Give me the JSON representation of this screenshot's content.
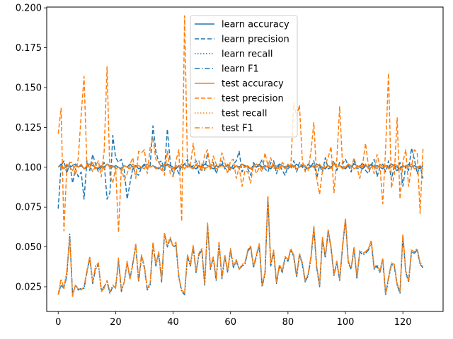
{
  "chart_data": {
    "type": "line",
    "title": "",
    "xlabel": "",
    "ylabel": "",
    "xlim": [
      -4,
      134
    ],
    "ylim": [
      0.0095,
      0.2005
    ],
    "xticks": [
      0,
      20,
      40,
      60,
      80,
      100,
      120
    ],
    "yticks": [
      0.025,
      0.05,
      0.075,
      0.1,
      0.125,
      0.15,
      0.175,
      0.2
    ],
    "ytick_labels": [
      "0.025",
      "0.050",
      "0.075",
      "0.100",
      "0.125",
      "0.150",
      "0.175",
      "0.200"
    ],
    "grid": false,
    "legend_position": "top-center",
    "x_start": 0,
    "series": [
      {
        "name": "learn accuracy",
        "color": "#1f77b4",
        "dash": "solid",
        "values": [
          0.1,
          0.102,
          0.099,
          0.101,
          0.1,
          0.101,
          0.102,
          0.1,
          0.101,
          0.099,
          0.1,
          0.102,
          0.101,
          0.1,
          0.099,
          0.101,
          0.1,
          0.102,
          0.101,
          0.1,
          0.101,
          0.1,
          0.099,
          0.101,
          0.1,
          0.102,
          0.1,
          0.101,
          0.099,
          0.1,
          0.101,
          0.102,
          0.1,
          0.101,
          0.1,
          0.099,
          0.101,
          0.1,
          0.102,
          0.101,
          0.1,
          0.099,
          0.101,
          0.1,
          0.102,
          0.1,
          0.101,
          0.1,
          0.099,
          0.101,
          0.1,
          0.102,
          0.101,
          0.1,
          0.099,
          0.101,
          0.1,
          0.102,
          0.1,
          0.101,
          0.1,
          0.099,
          0.101,
          0.1,
          0.102,
          0.101,
          0.1,
          0.099,
          0.101,
          0.1,
          0.102,
          0.1,
          0.101,
          0.1,
          0.099,
          0.101,
          0.1,
          0.102,
          0.101,
          0.1,
          0.099,
          0.101,
          0.1,
          0.102,
          0.1,
          0.101,
          0.1,
          0.099,
          0.101,
          0.1,
          0.102,
          0.101,
          0.1,
          0.099,
          0.101,
          0.1,
          0.102,
          0.1,
          0.101,
          0.1,
          0.099,
          0.101,
          0.1,
          0.102,
          0.101,
          0.1,
          0.099,
          0.101,
          0.1,
          0.102,
          0.1,
          0.101,
          0.1,
          0.099,
          0.101,
          0.1,
          0.102,
          0.101,
          0.1,
          0.099,
          0.101,
          0.1,
          0.102,
          0.1,
          0.101,
          0.1,
          0.099,
          0.101
        ]
      },
      {
        "name": "learn precision",
        "color": "#1f77b4",
        "dash": "dashed",
        "values": [
          0.074,
          0.101,
          0.104,
          0.096,
          0.103,
          0.09,
          0.099,
          0.094,
          0.097,
          0.08,
          0.104,
          0.098,
          0.108,
          0.102,
          0.097,
          0.1,
          0.103,
          0.08,
          0.084,
          0.12,
          0.106,
          0.103,
          0.105,
          0.098,
          0.08,
          0.09,
          0.1,
          0.096,
          0.095,
          0.1,
          0.102,
          0.099,
          0.101,
          0.126,
          0.11,
          0.103,
          0.104,
          0.098,
          0.124,
          0.103,
          0.095,
          0.1,
          0.096,
          0.101,
          0.102,
          0.105,
          0.099,
          0.101,
          0.104,
          0.096,
          0.102,
          0.098,
          0.109,
          0.1,
          0.103,
          0.096,
          0.101,
          0.104,
          0.099,
          0.1,
          0.098,
          0.102,
          0.104,
          0.11,
          0.097,
          0.101,
          0.099,
          0.095,
          0.103,
          0.1,
          0.101,
          0.105,
          0.099,
          0.097,
          0.103,
          0.104,
          0.096,
          0.102,
          0.098,
          0.095,
          0.101,
          0.099,
          0.104,
          0.097,
          0.103,
          0.1,
          0.098,
          0.102,
          0.1,
          0.104,
          0.093,
          0.101,
          0.097,
          0.106,
          0.099,
          0.1,
          0.104,
          0.098,
          0.103,
          0.102,
          0.105,
          0.101,
          0.097,
          0.104,
          0.099,
          0.1,
          0.103,
          0.098,
          0.096,
          0.101,
          0.105,
          0.094,
          0.1,
          0.102,
          0.097,
          0.104,
          0.092,
          0.101,
          0.097,
          0.103,
          0.088,
          0.101,
          0.098,
          0.112,
          0.105,
          0.096,
          0.101,
          0.093
        ]
      },
      {
        "name": "learn recall",
        "color": "#1f77b4",
        "dash": "dotted",
        "values": [
          0.02,
          0.026,
          0.024,
          0.032,
          0.058,
          0.02,
          0.026,
          0.023,
          0.024,
          0.024,
          0.034,
          0.043,
          0.027,
          0.036,
          0.039,
          0.023,
          0.025,
          0.028,
          0.021,
          0.025,
          0.025,
          0.041,
          0.022,
          0.028,
          0.04,
          0.03,
          0.04,
          0.051,
          0.028,
          0.044,
          0.037,
          0.023,
          0.026,
          0.052,
          0.038,
          0.046,
          0.028,
          0.058,
          0.05,
          0.055,
          0.05,
          0.051,
          0.031,
          0.022,
          0.02,
          0.044,
          0.038,
          0.05,
          0.034,
          0.045,
          0.048,
          0.026,
          0.064,
          0.036,
          0.043,
          0.029,
          0.052,
          0.03,
          0.044,
          0.034,
          0.048,
          0.037,
          0.041,
          0.036,
          0.038,
          0.039,
          0.047,
          0.05,
          0.037,
          0.044,
          0.051,
          0.025,
          0.033,
          0.081,
          0.038,
          0.047,
          0.027,
          0.038,
          0.034,
          0.043,
          0.041,
          0.048,
          0.044,
          0.031,
          0.045,
          0.039,
          0.028,
          0.032,
          0.043,
          0.062,
          0.037,
          0.025,
          0.055,
          0.043,
          0.06,
          0.049,
          0.032,
          0.04,
          0.029,
          0.05,
          0.067,
          0.04,
          0.036,
          0.049,
          0.03,
          0.047,
          0.045,
          0.046,
          0.048,
          0.053,
          0.036,
          0.038,
          0.034,
          0.042,
          0.02,
          0.03,
          0.039,
          0.038,
          0.026,
          0.021,
          0.057,
          0.034,
          0.028,
          0.047,
          0.046,
          0.048,
          0.039,
          0.037
        ]
      },
      {
        "name": "learn F1",
        "color": "#1f77b4",
        "dash": "dashdot",
        "values": [
          0.02,
          0.026,
          0.024,
          0.032,
          0.058,
          0.02,
          0.026,
          0.023,
          0.024,
          0.024,
          0.034,
          0.043,
          0.027,
          0.036,
          0.039,
          0.023,
          0.025,
          0.028,
          0.021,
          0.025,
          0.025,
          0.041,
          0.022,
          0.028,
          0.04,
          0.03,
          0.04,
          0.051,
          0.028,
          0.044,
          0.037,
          0.023,
          0.026,
          0.052,
          0.038,
          0.046,
          0.028,
          0.058,
          0.05,
          0.055,
          0.05,
          0.051,
          0.031,
          0.022,
          0.02,
          0.044,
          0.038,
          0.05,
          0.034,
          0.045,
          0.048,
          0.026,
          0.064,
          0.036,
          0.043,
          0.029,
          0.052,
          0.03,
          0.044,
          0.034,
          0.048,
          0.037,
          0.041,
          0.036,
          0.038,
          0.039,
          0.047,
          0.05,
          0.037,
          0.044,
          0.051,
          0.025,
          0.033,
          0.081,
          0.038,
          0.047,
          0.027,
          0.038,
          0.034,
          0.043,
          0.041,
          0.048,
          0.044,
          0.031,
          0.045,
          0.039,
          0.028,
          0.032,
          0.043,
          0.062,
          0.037,
          0.025,
          0.055,
          0.043,
          0.06,
          0.049,
          0.032,
          0.04,
          0.029,
          0.05,
          0.067,
          0.04,
          0.036,
          0.049,
          0.03,
          0.047,
          0.045,
          0.046,
          0.048,
          0.053,
          0.036,
          0.038,
          0.034,
          0.042,
          0.02,
          0.03,
          0.039,
          0.038,
          0.026,
          0.021,
          0.057,
          0.034,
          0.028,
          0.047,
          0.046,
          0.048,
          0.039,
          0.037
        ]
      },
      {
        "name": "test accuracy",
        "color": "#ff7f0e",
        "dash": "solid",
        "values": [
          0.1,
          0.101,
          0.099,
          0.102,
          0.1,
          0.098,
          0.101,
          0.1,
          0.102,
          0.099,
          0.101,
          0.1,
          0.103,
          0.099,
          0.1,
          0.101,
          0.099,
          0.102,
          0.1,
          0.101,
          0.099,
          0.1,
          0.098,
          0.101,
          0.1,
          0.099,
          0.102,
          0.1,
          0.101,
          0.1,
          0.099,
          0.102,
          0.1,
          0.101,
          0.099,
          0.1,
          0.098,
          0.102,
          0.101,
          0.1,
          0.099,
          0.101,
          0.1,
          0.102,
          0.099,
          0.101,
          0.1,
          0.099,
          0.102,
          0.1,
          0.101,
          0.099,
          0.1,
          0.102,
          0.101,
          0.099,
          0.1,
          0.101,
          0.1,
          0.102,
          0.099,
          0.1,
          0.101,
          0.099,
          0.102,
          0.1,
          0.101,
          0.099,
          0.1,
          0.102,
          0.101,
          0.099,
          0.1,
          0.101,
          0.1,
          0.102,
          0.099,
          0.1,
          0.101,
          0.099,
          0.102,
          0.1,
          0.101,
          0.099,
          0.1,
          0.102,
          0.101,
          0.099,
          0.1,
          0.101,
          0.1,
          0.102,
          0.099,
          0.1,
          0.101,
          0.099,
          0.102,
          0.1,
          0.101,
          0.099,
          0.1,
          0.102,
          0.101,
          0.099,
          0.1,
          0.101,
          0.1,
          0.102,
          0.099,
          0.1,
          0.101,
          0.099,
          0.102,
          0.1,
          0.101,
          0.099,
          0.1,
          0.102,
          0.101,
          0.099,
          0.1,
          0.101,
          0.1,
          0.102,
          0.099,
          0.1,
          0.101,
          0.099
        ]
      },
      {
        "name": "test precision",
        "color": "#ff7f0e",
        "dash": "dashed",
        "values": [
          0.121,
          0.137,
          0.06,
          0.1,
          0.103,
          0.103,
          0.095,
          0.106,
          0.133,
          0.157,
          0.1,
          0.102,
          0.097,
          0.101,
          0.104,
          0.094,
          0.11,
          0.163,
          0.095,
          0.09,
          0.1,
          0.059,
          0.1,
          0.092,
          0.096,
          0.102,
          0.106,
          0.093,
          0.11,
          0.109,
          0.111,
          0.096,
          0.112,
          0.118,
          0.105,
          0.103,
          0.1,
          0.095,
          0.11,
          0.096,
          0.094,
          0.104,
          0.111,
          0.066,
          0.195,
          0.102,
          0.101,
          0.115,
          0.101,
          0.104,
          0.097,
          0.108,
          0.111,
          0.098,
          0.107,
          0.102,
          0.1,
          0.109,
          0.103,
          0.096,
          0.104,
          0.105,
          0.093,
          0.1,
          0.088,
          0.098,
          0.097,
          0.09,
          0.102,
          0.096,
          0.1,
          0.097,
          0.109,
          0.101,
          0.106,
          0.099,
          0.102,
          0.098,
          0.103,
          0.101,
          0.099,
          0.101,
          0.14,
          0.132,
          0.139,
          0.104,
          0.097,
          0.098,
          0.11,
          0.128,
          0.093,
          0.083,
          0.098,
          0.102,
          0.106,
          0.113,
          0.084,
          0.105,
          0.138,
          0.101,
          0.1,
          0.102,
          0.099,
          0.106,
          0.1,
          0.093,
          0.102,
          0.115,
          0.101,
          0.102,
          0.096,
          0.108,
          0.101,
          0.077,
          0.112,
          0.159,
          0.087,
          0.095,
          0.131,
          0.08,
          0.103,
          0.111,
          0.088,
          0.1,
          0.111,
          0.109,
          0.071,
          0.112
        ]
      },
      {
        "name": "test recall",
        "color": "#ff7f0e",
        "dash": "dotted",
        "values": [
          0.02,
          0.03,
          0.024,
          0.035,
          0.056,
          0.019,
          0.026,
          0.024,
          0.023,
          0.025,
          0.035,
          0.044,
          0.028,
          0.038,
          0.04,
          0.022,
          0.024,
          0.029,
          0.022,
          0.026,
          0.024,
          0.043,
          0.023,
          0.028,
          0.041,
          0.03,
          0.039,
          0.052,
          0.029,
          0.045,
          0.038,
          0.024,
          0.027,
          0.053,
          0.039,
          0.047,
          0.029,
          0.059,
          0.051,
          0.056,
          0.05,
          0.053,
          0.031,
          0.023,
          0.021,
          0.045,
          0.039,
          0.051,
          0.035,
          0.046,
          0.049,
          0.027,
          0.065,
          0.037,
          0.044,
          0.03,
          0.053,
          0.031,
          0.045,
          0.035,
          0.049,
          0.038,
          0.042,
          0.036,
          0.039,
          0.04,
          0.048,
          0.051,
          0.038,
          0.045,
          0.052,
          0.026,
          0.034,
          0.082,
          0.039,
          0.048,
          0.028,
          0.039,
          0.035,
          0.044,
          0.042,
          0.049,
          0.045,
          0.032,
          0.046,
          0.04,
          0.029,
          0.033,
          0.044,
          0.063,
          0.038,
          0.026,
          0.056,
          0.044,
          0.061,
          0.05,
          0.033,
          0.041,
          0.03,
          0.051,
          0.068,
          0.041,
          0.037,
          0.05,
          0.031,
          0.048,
          0.046,
          0.047,
          0.049,
          0.054,
          0.037,
          0.039,
          0.035,
          0.043,
          0.021,
          0.031,
          0.04,
          0.039,
          0.027,
          0.022,
          0.058,
          0.035,
          0.029,
          0.048,
          0.047,
          0.049,
          0.04,
          0.038
        ]
      },
      {
        "name": "test F1",
        "color": "#ff7f0e",
        "dash": "dashdot",
        "values": [
          0.02,
          0.03,
          0.024,
          0.035,
          0.056,
          0.019,
          0.026,
          0.024,
          0.023,
          0.025,
          0.035,
          0.044,
          0.028,
          0.038,
          0.04,
          0.022,
          0.024,
          0.029,
          0.022,
          0.026,
          0.024,
          0.043,
          0.023,
          0.028,
          0.041,
          0.03,
          0.039,
          0.052,
          0.029,
          0.045,
          0.038,
          0.024,
          0.027,
          0.053,
          0.039,
          0.047,
          0.029,
          0.059,
          0.051,
          0.056,
          0.05,
          0.053,
          0.031,
          0.023,
          0.021,
          0.045,
          0.039,
          0.051,
          0.035,
          0.046,
          0.049,
          0.027,
          0.065,
          0.037,
          0.044,
          0.03,
          0.053,
          0.031,
          0.045,
          0.035,
          0.049,
          0.038,
          0.042,
          0.036,
          0.039,
          0.04,
          0.048,
          0.051,
          0.038,
          0.045,
          0.052,
          0.026,
          0.034,
          0.082,
          0.039,
          0.048,
          0.028,
          0.039,
          0.035,
          0.044,
          0.042,
          0.049,
          0.045,
          0.032,
          0.046,
          0.04,
          0.029,
          0.033,
          0.044,
          0.063,
          0.038,
          0.026,
          0.056,
          0.044,
          0.061,
          0.05,
          0.033,
          0.041,
          0.03,
          0.051,
          0.068,
          0.041,
          0.037,
          0.05,
          0.031,
          0.048,
          0.046,
          0.047,
          0.049,
          0.054,
          0.037,
          0.039,
          0.035,
          0.043,
          0.021,
          0.031,
          0.04,
          0.039,
          0.027,
          0.022,
          0.058,
          0.035,
          0.029,
          0.048,
          0.047,
          0.049,
          0.04,
          0.038
        ]
      }
    ]
  }
}
